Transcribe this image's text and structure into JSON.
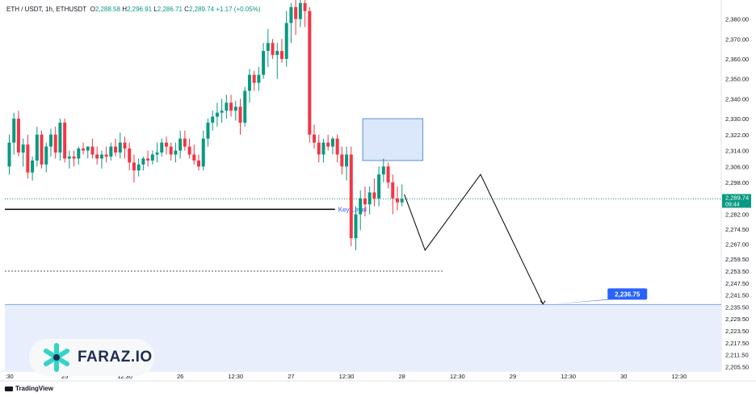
{
  "header": {
    "symbol": "ETH / USDT, 1h, ETHUSDT",
    "o_label": "O",
    "o": "2,288.58",
    "h_label": "H",
    "h": "2,296.91",
    "l_label": "L",
    "l": "2,286.71",
    "c_label": "C",
    "c": "2,289.74",
    "change": "+1.17 (+0.05%)"
  },
  "watermark": {
    "name": "FARAZ.IO"
  },
  "brand": {
    "name": "TradingView"
  },
  "colors": {
    "up": "#089981",
    "down": "#f23645",
    "accent": "#2962ff",
    "zone": "#e8eefc"
  },
  "chart_data": {
    "type": "candlestick",
    "ylim": [
      2202,
      2388
    ],
    "y_ticks": [
      "2,205.50",
      "2,211.50",
      "2,217.50",
      "2,223.50",
      "2,229.50",
      "2,235.50",
      "2,241.50",
      "2,247.50",
      "2,253.50",
      "2,259.50",
      "2,267.00",
      "2,274.50",
      "2,282.00",
      "2,290.00",
      "2,298.00",
      "2,306.00",
      "2,314.00",
      "2,322.00",
      "2,330.00",
      "2,340.00",
      "2,350.00",
      "2,360.00",
      "2,370.00",
      "2,380.00"
    ],
    "x_ticks": [
      {
        "label": ":30",
        "i": 0
      },
      {
        "label": "25",
        "i": 12
      },
      {
        "label": "12:30",
        "i": 25
      },
      {
        "label": "26",
        "i": 37
      },
      {
        "label": "12:30",
        "i": 49
      },
      {
        "label": "27",
        "i": 61
      },
      {
        "label": "12:30",
        "i": 73
      },
      {
        "label": "28",
        "i": 85
      },
      {
        "label": "12:30",
        "i": 97
      },
      {
        "label": "29",
        "i": 109
      },
      {
        "label": "12:30",
        "i": 121
      },
      {
        "label": "30",
        "i": 133
      },
      {
        "label": "12:30",
        "i": 145
      }
    ],
    "candles": [
      [
        2306,
        2322,
        2302,
        2318
      ],
      [
        2318,
        2333,
        2312,
        2330
      ],
      [
        2330,
        2334,
        2311,
        2313
      ],
      [
        2313,
        2320,
        2306,
        2317
      ],
      [
        2317,
        2322,
        2300,
        2303
      ],
      [
        2303,
        2311,
        2299,
        2309
      ],
      [
        2309,
        2326,
        2306,
        2322
      ],
      [
        2322,
        2324,
        2305,
        2307
      ],
      [
        2307,
        2318,
        2303,
        2316
      ],
      [
        2316,
        2325,
        2311,
        2322
      ],
      [
        2322,
        2326,
        2310,
        2313
      ],
      [
        2313,
        2330,
        2309,
        2328
      ],
      [
        2328,
        2330,
        2308,
        2310
      ],
      [
        2310,
        2314,
        2305,
        2311
      ],
      [
        2311,
        2314,
        2306,
        2310
      ],
      [
        2310,
        2316,
        2307,
        2315
      ],
      [
        2315,
        2318,
        2312,
        2314
      ],
      [
        2314,
        2316,
        2310,
        2316
      ],
      [
        2316,
        2320,
        2310,
        2312
      ],
      [
        2312,
        2316,
        2307,
        2310
      ],
      [
        2310,
        2314,
        2305,
        2312
      ],
      [
        2312,
        2316,
        2308,
        2311
      ],
      [
        2311,
        2318,
        2309,
        2316
      ],
      [
        2316,
        2320,
        2311,
        2313
      ],
      [
        2313,
        2323,
        2310,
        2318
      ],
      [
        2318,
        2321,
        2310,
        2315
      ],
      [
        2315,
        2318,
        2304,
        2308
      ],
      [
        2308,
        2312,
        2298,
        2304
      ],
      [
        2304,
        2310,
        2301,
        2307
      ],
      [
        2307,
        2311,
        2304,
        2310
      ],
      [
        2310,
        2314,
        2306,
        2309
      ],
      [
        2309,
        2314,
        2307,
        2312
      ],
      [
        2312,
        2318,
        2308,
        2313
      ],
      [
        2313,
        2320,
        2311,
        2318
      ],
      [
        2318,
        2321,
        2312,
        2316
      ],
      [
        2316,
        2318,
        2309,
        2312
      ],
      [
        2312,
        2318,
        2308,
        2314
      ],
      [
        2314,
        2324,
        2310,
        2320
      ],
      [
        2320,
        2324,
        2314,
        2316
      ],
      [
        2316,
        2320,
        2310,
        2312
      ],
      [
        2312,
        2317,
        2307,
        2309
      ],
      [
        2309,
        2312,
        2304,
        2306
      ],
      [
        2306,
        2324,
        2304,
        2320
      ],
      [
        2320,
        2330,
        2316,
        2328
      ],
      [
        2328,
        2334,
        2324,
        2331
      ],
      [
        2331,
        2338,
        2326,
        2333
      ],
      [
        2333,
        2340,
        2328,
        2334
      ],
      [
        2334,
        2342,
        2330,
        2338
      ],
      [
        2338,
        2342,
        2331,
        2334
      ],
      [
        2334,
        2339,
        2329,
        2336
      ],
      [
        2336,
        2340,
        2322,
        2328
      ],
      [
        2328,
        2346,
        2326,
        2344
      ],
      [
        2344,
        2355,
        2338,
        2352
      ],
      [
        2352,
        2354,
        2344,
        2348
      ],
      [
        2348,
        2356,
        2344,
        2352
      ],
      [
        2352,
        2368,
        2350,
        2364
      ],
      [
        2364,
        2375,
        2356,
        2368
      ],
      [
        2368,
        2370,
        2360,
        2362
      ],
      [
        2362,
        2368,
        2350,
        2364
      ],
      [
        2364,
        2370,
        2358,
        2360
      ],
      [
        2360,
        2384,
        2356,
        2378
      ],
      [
        2378,
        2388,
        2368,
        2386
      ],
      [
        2386,
        2392,
        2372,
        2380
      ],
      [
        2380,
        2392,
        2376,
        2388
      ],
      [
        2388,
        2392,
        2376,
        2384
      ],
      [
        2384,
        2386,
        2318,
        2322
      ],
      [
        2322,
        2327,
        2315,
        2318
      ],
      [
        2318,
        2322,
        2308,
        2312
      ],
      [
        2312,
        2320,
        2308,
        2318
      ],
      [
        2318,
        2322,
        2314,
        2316
      ],
      [
        2316,
        2321,
        2312,
        2320
      ],
      [
        2320,
        2322,
        2308,
        2312
      ],
      [
        2312,
        2316,
        2302,
        2306
      ],
      [
        2306,
        2316,
        2299,
        2312
      ],
      [
        2312,
        2316,
        2266,
        2270
      ],
      [
        2270,
        2286,
        2264,
        2282
      ],
      [
        2282,
        2294,
        2274,
        2290
      ],
      [
        2290,
        2296,
        2281,
        2287
      ],
      [
        2287,
        2296,
        2282,
        2293
      ],
      [
        2293,
        2300,
        2286,
        2290
      ],
      [
        2290,
        2306,
        2286,
        2302
      ],
      [
        2302,
        2310,
        2298,
        2306
      ],
      [
        2306,
        2308,
        2295,
        2298
      ],
      [
        2298,
        2302,
        2282,
        2290
      ],
      [
        2290,
        2296,
        2284,
        2288
      ],
      [
        2288,
        2297,
        2286,
        2289.74
      ]
    ],
    "last_price": {
      "value": 2289.74,
      "label": "2,289.74",
      "countdown": "09:44"
    },
    "key_level": {
      "value": 2284.5,
      "label": "Key Level"
    },
    "dotted_level": {
      "value": 2253.5
    },
    "resistance_zone": {
      "low": 2309,
      "high": 2330
    },
    "target_zone": {
      "low": 2202,
      "high": 2236.75
    },
    "target": {
      "value": 2236.75,
      "label": "2,236.75"
    },
    "projection": [
      [
        85.5,
        2292
      ],
      [
        90,
        2264
      ],
      [
        102,
        2302
      ],
      [
        115.5,
        2237
      ]
    ]
  }
}
